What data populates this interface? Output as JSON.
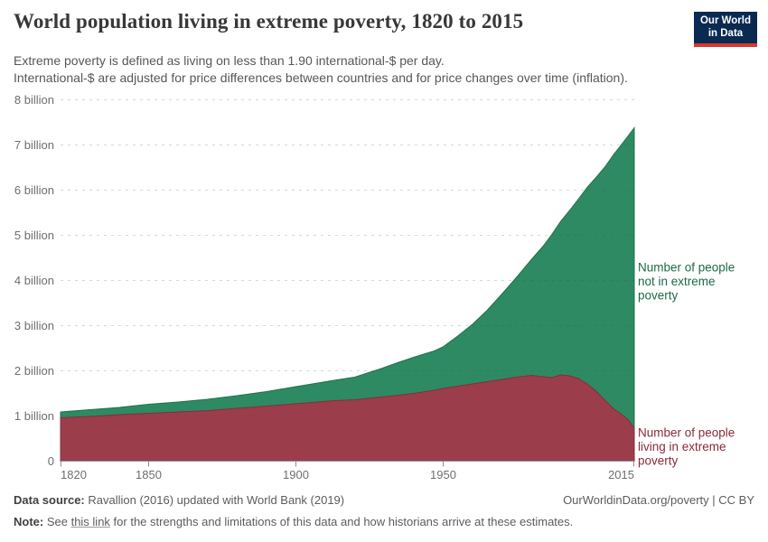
{
  "header": {
    "title": "World population living in extreme poverty, 1820 to 2015",
    "subtitle_line1": "Extreme poverty is defined as living on less than 1.90 international-$ per day.",
    "subtitle_line2": "International-$ are adjusted for price differences between countries and for price changes over time (inflation).",
    "logo": {
      "line1": "Our World",
      "line2": "in Data",
      "bg": "#0a2a52",
      "stripe": "#d6382e"
    }
  },
  "chart_data": {
    "type": "area",
    "stacked": true,
    "title": "World population living in extreme poverty, 1820 to 2015",
    "xlabel": "",
    "ylabel": "",
    "x_range": [
      1820,
      2015
    ],
    "ylim_billions": [
      0,
      8
    ],
    "grid": "dashed horizontal",
    "legend_position": "right",
    "units": "billions of people",
    "x": [
      1820,
      1830,
      1840,
      1850,
      1860,
      1870,
      1880,
      1890,
      1900,
      1913,
      1920,
      1929,
      1935,
      1940,
      1947,
      1950,
      1955,
      1960,
      1965,
      1970,
      1975,
      1980,
      1984,
      1987,
      1990,
      1993,
      1996,
      1999,
      2002,
      2005,
      2008,
      2011,
      2013,
      2015
    ],
    "series": [
      {
        "name": "Number of people living in extreme poverty",
        "color": "#9b3d4b",
        "line_color": "#822f3d",
        "values": [
          0.96,
          0.99,
          1.03,
          1.06,
          1.09,
          1.12,
          1.17,
          1.22,
          1.27,
          1.34,
          1.36,
          1.42,
          1.46,
          1.5,
          1.57,
          1.61,
          1.66,
          1.71,
          1.76,
          1.81,
          1.86,
          1.9,
          1.87,
          1.85,
          1.91,
          1.89,
          1.83,
          1.71,
          1.55,
          1.35,
          1.16,
          1.02,
          0.91,
          0.73
        ]
      },
      {
        "name": "Number of people not in extreme poverty",
        "color": "#2e8a63",
        "line_color": "#22714f",
        "values": [
          0.13,
          0.15,
          0.16,
          0.2,
          0.22,
          0.25,
          0.28,
          0.32,
          0.38,
          0.45,
          0.5,
          0.63,
          0.73,
          0.8,
          0.87,
          0.92,
          1.11,
          1.32,
          1.58,
          1.89,
          2.21,
          2.56,
          2.89,
          3.17,
          3.4,
          3.66,
          3.97,
          4.35,
          4.73,
          5.16,
          5.63,
          6.02,
          6.3,
          6.65
        ]
      }
    ],
    "world_total_billions": [
      1.09,
      1.14,
      1.19,
      1.26,
      1.31,
      1.37,
      1.45,
      1.54,
      1.65,
      1.79,
      1.86,
      2.05,
      2.19,
      2.3,
      2.44,
      2.53,
      2.77,
      3.03,
      3.34,
      3.7,
      4.07,
      4.46,
      4.76,
      5.02,
      5.31,
      5.55,
      5.8,
      6.06,
      6.28,
      6.51,
      6.79,
      7.04,
      7.21,
      7.38
    ]
  },
  "axis": {
    "y_labels": [
      "8 billion",
      "7 billion",
      "6 billion",
      "5 billion",
      "4 billion",
      "3 billion",
      "2 billion",
      "1 billion",
      "0"
    ],
    "x_labels": [
      "1820",
      "1850",
      "1900",
      "1950",
      "2015"
    ]
  },
  "legend": {
    "not_poor": {
      "color": "#1c6a49",
      "lines": [
        "Number of people",
        "not in extreme",
        "poverty"
      ]
    },
    "poor": {
      "color": "#8b2a3a",
      "lines": [
        "Number of people",
        "living in extreme",
        "poverty"
      ]
    }
  },
  "footer": {
    "data_source_label": "Data source:",
    "data_source_value": " Ravallion (2016) updated with World Bank (2019)",
    "credit": "OurWorldinData.org/poverty | CC BY",
    "note_label": "Note:",
    "note_pre": " See ",
    "note_link": "this link",
    "note_post": " for the strengths and limitations of this data and how historians arrive at these estimates."
  }
}
